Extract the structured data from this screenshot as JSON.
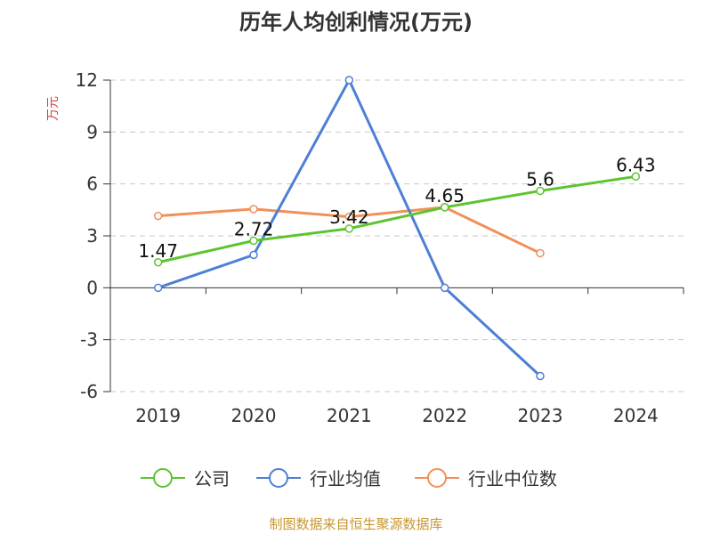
{
  "chart_data": {
    "type": "line",
    "title": "历年人均创利情况(万元)",
    "ylabel": "万元",
    "categories": [
      "2019",
      "2020",
      "2021",
      "2022",
      "2023",
      "2024"
    ],
    "ylim": [
      -6,
      12
    ],
    "yticks": [
      12,
      9,
      6,
      3,
      0,
      -3,
      -6
    ],
    "grid": true,
    "legend_position": "bottom",
    "series": [
      {
        "name": "公司",
        "color": "#5cc430",
        "values": [
          1.47,
          2.72,
          3.42,
          4.65,
          5.6,
          6.43
        ],
        "labels": [
          "1.47",
          "2.72",
          "3.42",
          "4.65",
          "5.6",
          "6.43"
        ]
      },
      {
        "name": "行业均值",
        "color": "#4e7fd6",
        "values": [
          0,
          1.9,
          12,
          0,
          -5.1,
          null
        ]
      },
      {
        "name": "行业中位数",
        "color": "#f0915a",
        "values": [
          4.15,
          4.55,
          4.1,
          4.65,
          2.0,
          null
        ]
      }
    ],
    "source": "制图数据来自恒生聚源数据库",
    "source_color": "#c8962d",
    "unit_color": "#e03c3c"
  }
}
